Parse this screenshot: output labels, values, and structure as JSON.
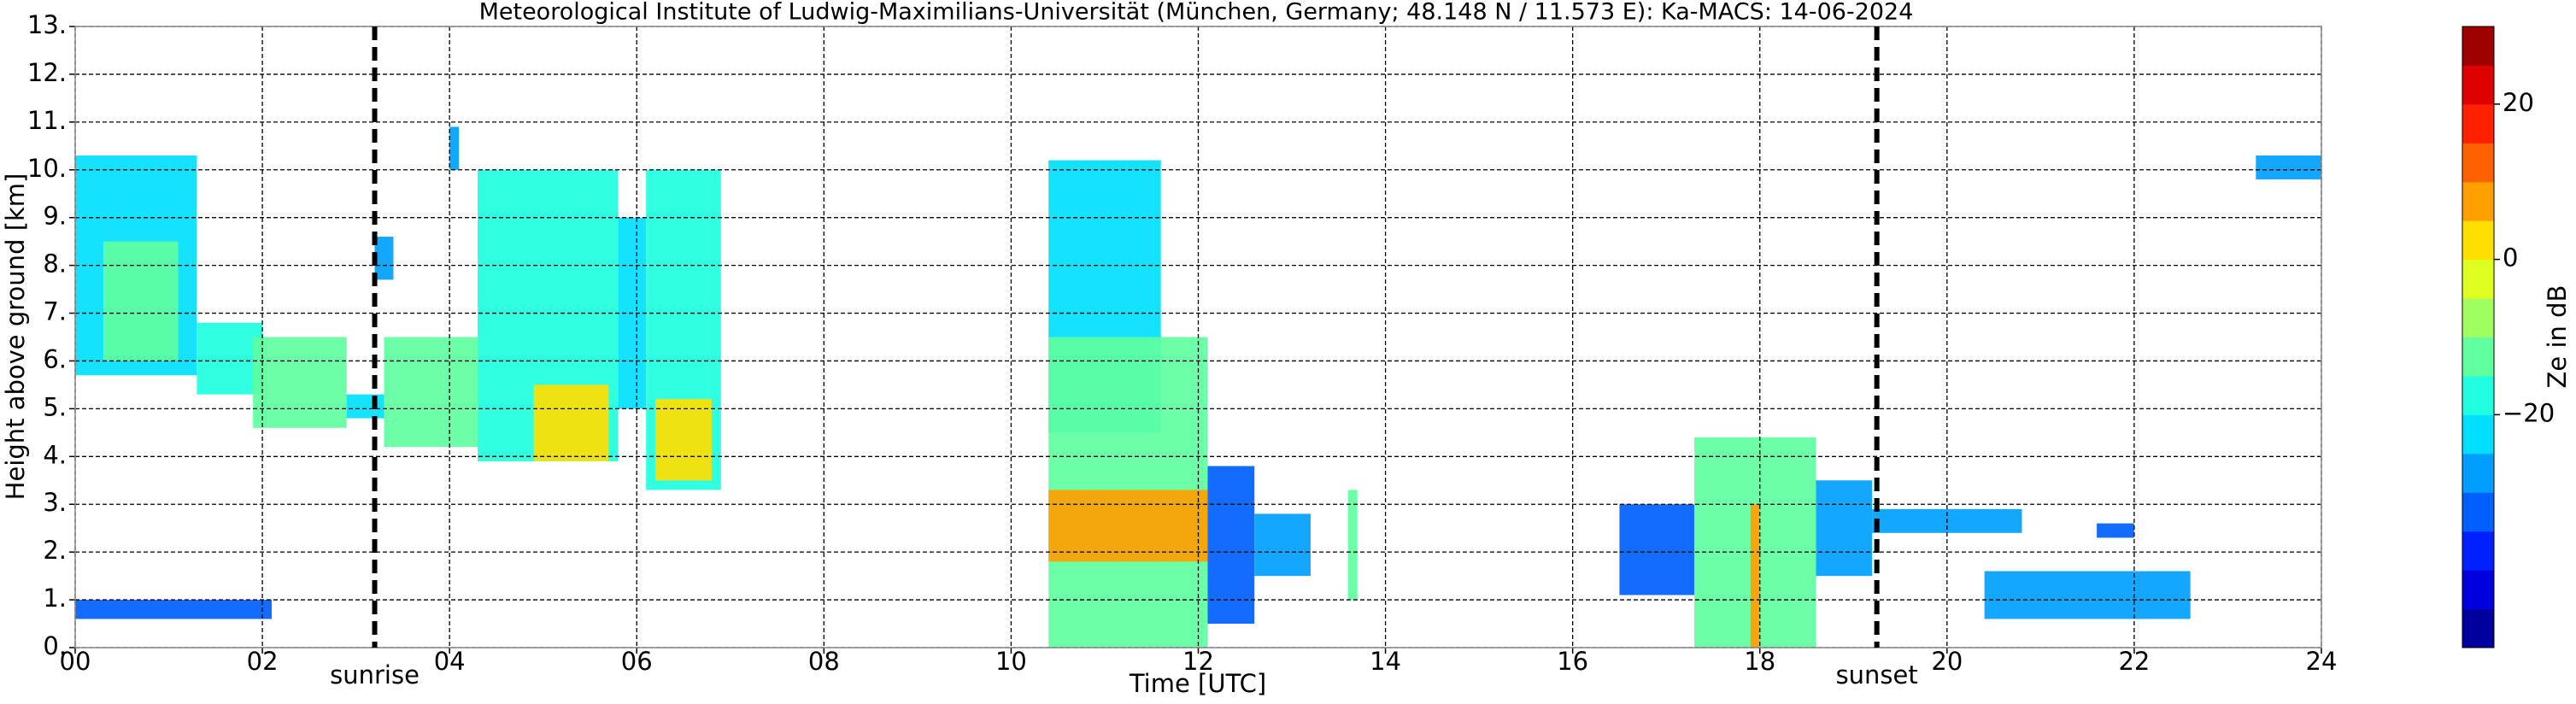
{
  "chart_data": {
    "type": "heatmap",
    "title": "Meteorological Institute of Ludwig-Maximilians-Universität (München, Germany; 48.148 N / 11.573 E):    Ka-MACS: 14-06-2024",
    "x_label": "Time [UTC]",
    "y_label": "Height above ground [km]",
    "colorbar_label": "Ze in dB",
    "xlim": [
      0,
      24
    ],
    "ylim": [
      0,
      13
    ],
    "clim": [
      -50,
      30
    ],
    "color_levels": 16,
    "colormap": "jet",
    "grid": true,
    "xticks": [
      {
        "value": 0,
        "label": "00"
      },
      {
        "value": 2,
        "label": "02"
      },
      {
        "value": 4,
        "label": "04"
      },
      {
        "value": 6,
        "label": "06"
      },
      {
        "value": 8,
        "label": "08"
      },
      {
        "value": 10,
        "label": "10"
      },
      {
        "value": 12,
        "label": "12"
      },
      {
        "value": 14,
        "label": "14"
      },
      {
        "value": 16,
        "label": "16"
      },
      {
        "value": 18,
        "label": "18"
      },
      {
        "value": 20,
        "label": "20"
      },
      {
        "value": 22,
        "label": "22"
      },
      {
        "value": 24,
        "label": "24"
      }
    ],
    "yticks": [
      {
        "value": 0,
        "label": "0."
      },
      {
        "value": 1,
        "label": "1."
      },
      {
        "value": 2,
        "label": "2."
      },
      {
        "value": 3,
        "label": "3."
      },
      {
        "value": 4,
        "label": "4."
      },
      {
        "value": 5,
        "label": "5."
      },
      {
        "value": 6,
        "label": "6."
      },
      {
        "value": 7,
        "label": "7."
      },
      {
        "value": 8,
        "label": "8."
      },
      {
        "value": 9,
        "label": "9."
      },
      {
        "value": 10,
        "label": "10."
      },
      {
        "value": 11,
        "label": "11."
      },
      {
        "value": 12,
        "label": "12."
      },
      {
        "value": 13,
        "label": "13."
      }
    ],
    "cticks": [
      {
        "value": 20,
        "label": "20"
      },
      {
        "value": 0,
        "label": "0"
      },
      {
        "value": -20,
        "label": "−20"
      }
    ],
    "annotations": [
      {
        "text": "sunrise",
        "x": 3.2
      },
      {
        "text": "sunset",
        "x": 19.25
      }
    ],
    "cells": [
      {
        "x": [
          0,
          1.3
        ],
        "y": [
          5.7,
          10.3
        ],
        "z": -25
      },
      {
        "x": [
          0.3,
          1.1
        ],
        "y": [
          6,
          8.5
        ],
        "z": -12
      },
      {
        "x": [
          1.3,
          2.0
        ],
        "y": [
          5.3,
          6.8
        ],
        "z": -20
      },
      {
        "x": [
          1.9,
          2.9
        ],
        "y": [
          4.6,
          6.5
        ],
        "z": -15
      },
      {
        "x": [
          2.9,
          3.3
        ],
        "y": [
          4.8,
          5.3
        ],
        "z": -25
      },
      {
        "x": [
          3.2,
          3.4
        ],
        "y": [
          7.7,
          8.6
        ],
        "z": -28
      },
      {
        "x": [
          3.3,
          4.3
        ],
        "y": [
          4.2,
          6.5
        ],
        "z": -15
      },
      {
        "x": [
          4.0,
          4.1
        ],
        "y": [
          10,
          10.9
        ],
        "z": -28
      },
      {
        "x": [
          4.3,
          5.8
        ],
        "y": [
          3.9,
          10
        ],
        "z": -20
      },
      {
        "x": [
          4.9,
          5.7
        ],
        "y": [
          3.9,
          5.5
        ],
        "z": 0
      },
      {
        "x": [
          5.8,
          6.1
        ],
        "y": [
          5,
          9
        ],
        "z": -25
      },
      {
        "x": [
          6.1,
          6.9
        ],
        "y": [
          3.3,
          10
        ],
        "z": -18
      },
      {
        "x": [
          6.2,
          6.8
        ],
        "y": [
          3.5,
          5.2
        ],
        "z": 2
      },
      {
        "x": [
          0,
          2.1
        ],
        "y": [
          0.6,
          1
        ],
        "z": -35
      },
      {
        "x": [
          10.4,
          11.6
        ],
        "y": [
          4.5,
          10.2
        ],
        "z": -22
      },
      {
        "x": [
          10.4,
          12.1
        ],
        "y": [
          0,
          6.5
        ],
        "z": -15
      },
      {
        "x": [
          10.4,
          12.1
        ],
        "y": [
          1.8,
          3.3
        ],
        "z": 5
      },
      {
        "x": [
          12.1,
          12.6
        ],
        "y": [
          0.5,
          3.8
        ],
        "z": -35
      },
      {
        "x": [
          12.6,
          13.2
        ],
        "y": [
          1.5,
          2.8
        ],
        "z": -30
      },
      {
        "x": [
          13.6,
          13.7
        ],
        "y": [
          1,
          3.3
        ],
        "z": -15
      },
      {
        "x": [
          16.5,
          17.3
        ],
        "y": [
          1.1,
          3
        ],
        "z": -32
      },
      {
        "x": [
          17.3,
          18.6
        ],
        "y": [
          0,
          4.4
        ],
        "z": -15
      },
      {
        "x": [
          17.9,
          18.0
        ],
        "y": [
          0,
          3
        ],
        "z": 5
      },
      {
        "x": [
          18.6,
          19.2
        ],
        "y": [
          1.5,
          3.5
        ],
        "z": -28
      },
      {
        "x": [
          19.2,
          20.8
        ],
        "y": [
          2.4,
          2.9
        ],
        "z": -30
      },
      {
        "x": [
          20.4,
          22.6
        ],
        "y": [
          0.6,
          1.6
        ],
        "z": -26
      },
      {
        "x": [
          21.6,
          22.0
        ],
        "y": [
          2.3,
          2.6
        ],
        "z": -32
      },
      {
        "x": [
          23.3,
          24
        ],
        "y": [
          9.8,
          10.3
        ],
        "z": -30
      }
    ]
  }
}
